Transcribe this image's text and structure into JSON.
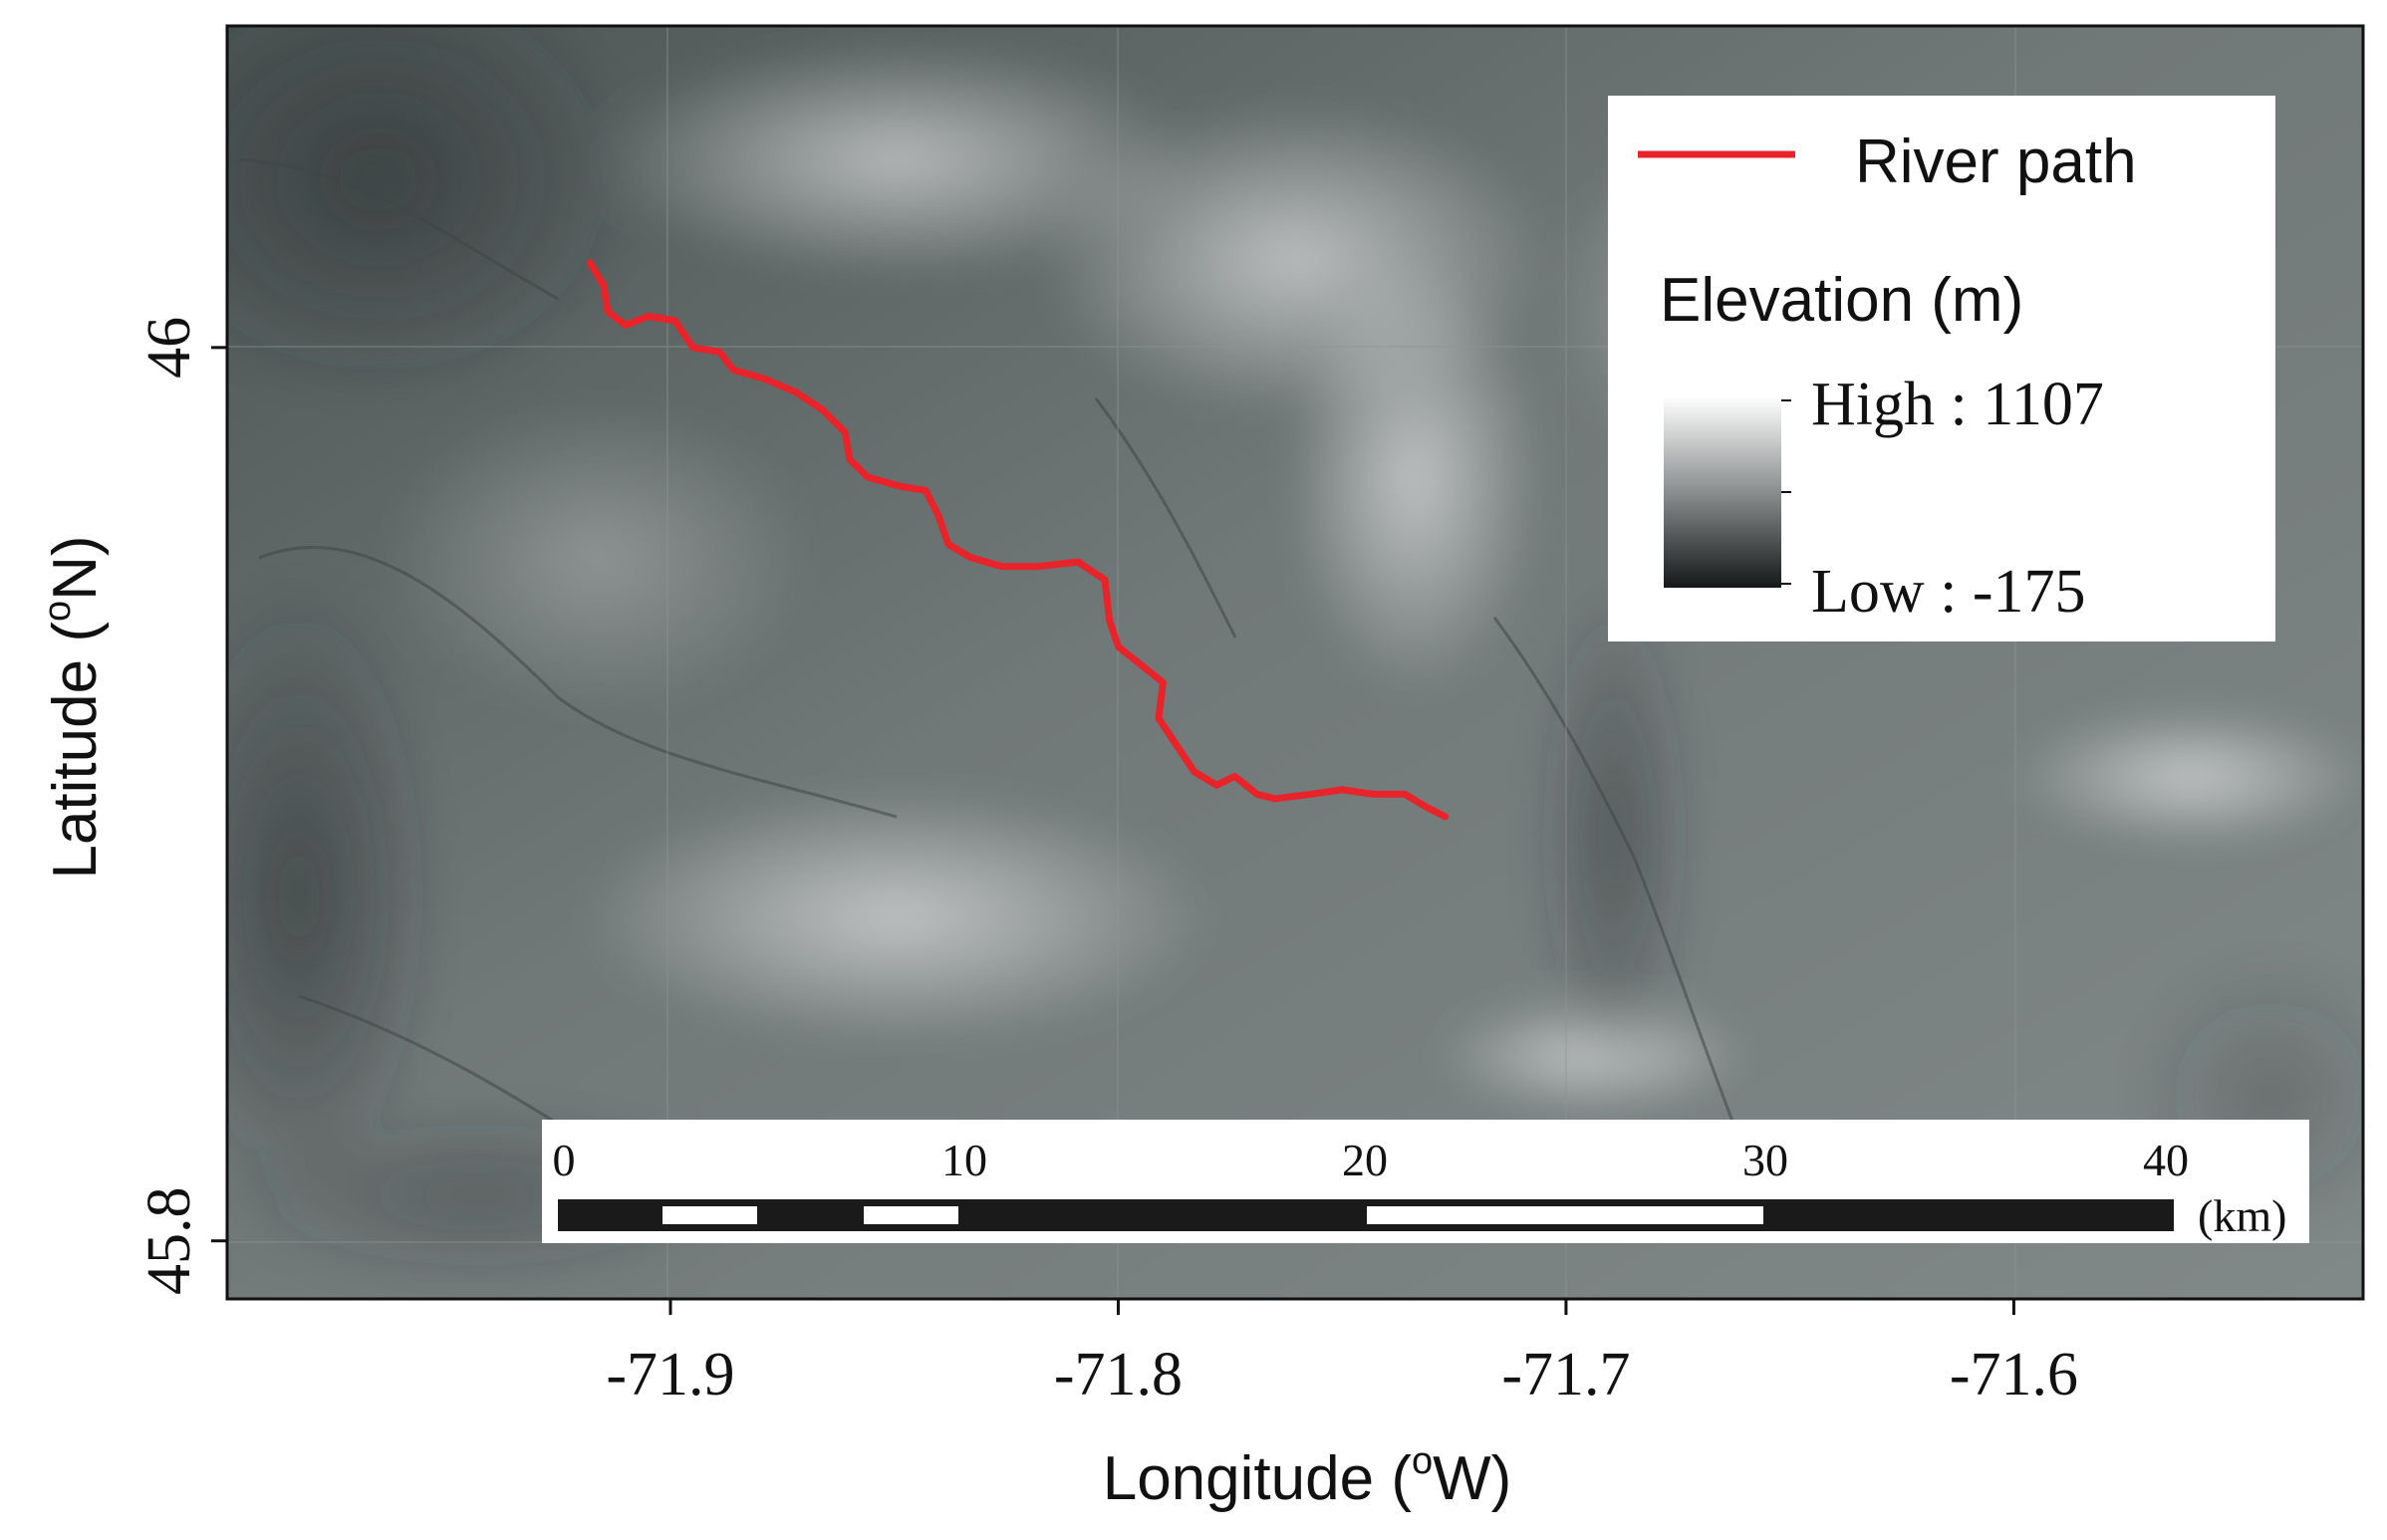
{
  "map": {
    "x_axis": {
      "title_prefix": "Longitude (",
      "title_degree": "o",
      "title_suffix": "W)",
      "ticks": [
        "-71.9",
        "-71.8",
        "-71.7",
        "-71.6"
      ],
      "tick_values": [
        -71.9,
        -71.8,
        -71.7,
        -71.6
      ]
    },
    "y_axis": {
      "title_prefix": "Latitude (",
      "title_degree": "o",
      "title_suffix": "N)",
      "ticks": [
        "46",
        "45.8"
      ],
      "tick_values": [
        46.0,
        45.8
      ]
    },
    "extent": {
      "lon_min": -71.999,
      "lon_max": -71.522,
      "lat_min": 45.787,
      "lat_max": 46.072
    },
    "legend": {
      "river_label": "River path",
      "river_color": "#e8242a",
      "elevation_title": "Elevation (m)",
      "high_label": "High : 1107",
      "low_label": "Low : -175",
      "ramp_high_color": "#ffffff",
      "ramp_low_color": "#161919"
    },
    "scale_bar": {
      "labels": [
        "0",
        "10",
        "20",
        "30",
        "40"
      ],
      "unit": "(km)"
    },
    "river_path": [
      [
        -71.918,
        46.019
      ],
      [
        -71.915,
        46.014
      ],
      [
        -71.914,
        46.008
      ],
      [
        -71.91,
        46.005
      ],
      [
        -71.905,
        46.007
      ],
      [
        -71.899,
        46.006
      ],
      [
        -71.895,
        46.0
      ],
      [
        -71.889,
        45.999
      ],
      [
        -71.886,
        45.995
      ],
      [
        -71.879,
        45.993
      ],
      [
        -71.872,
        45.99
      ],
      [
        -71.866,
        45.986
      ],
      [
        -71.861,
        45.981
      ],
      [
        -71.86,
        45.975
      ],
      [
        -71.856,
        45.971
      ],
      [
        -71.849,
        45.969
      ],
      [
        -71.843,
        45.968
      ],
      [
        -71.84,
        45.962
      ],
      [
        -71.838,
        45.956
      ],
      [
        -71.833,
        45.953
      ],
      [
        -71.826,
        45.951
      ],
      [
        -71.818,
        45.951
      ],
      [
        -71.809,
        45.952
      ],
      [
        -71.803,
        45.948
      ],
      [
        -71.802,
        45.939
      ],
      [
        -71.8,
        45.933
      ],
      [
        -71.795,
        45.929
      ],
      [
        -71.79,
        45.925
      ],
      [
        -71.791,
        45.917
      ],
      [
        -71.787,
        45.911
      ],
      [
        -71.783,
        45.905
      ],
      [
        -71.778,
        45.902
      ],
      [
        -71.774,
        45.904
      ],
      [
        -71.769,
        45.9
      ],
      [
        -71.765,
        45.899
      ],
      [
        -71.757,
        45.9
      ],
      [
        -71.75,
        45.901
      ],
      [
        -71.743,
        45.9
      ],
      [
        -71.736,
        45.9
      ],
      [
        -71.731,
        45.897
      ],
      [
        -71.727,
        45.895
      ]
    ],
    "colors": {
      "river": "#e8242a",
      "frame": "#111111",
      "scale_bar_dark": "#1a1a1a",
      "scale_bar_light": "#ffffff"
    }
  }
}
